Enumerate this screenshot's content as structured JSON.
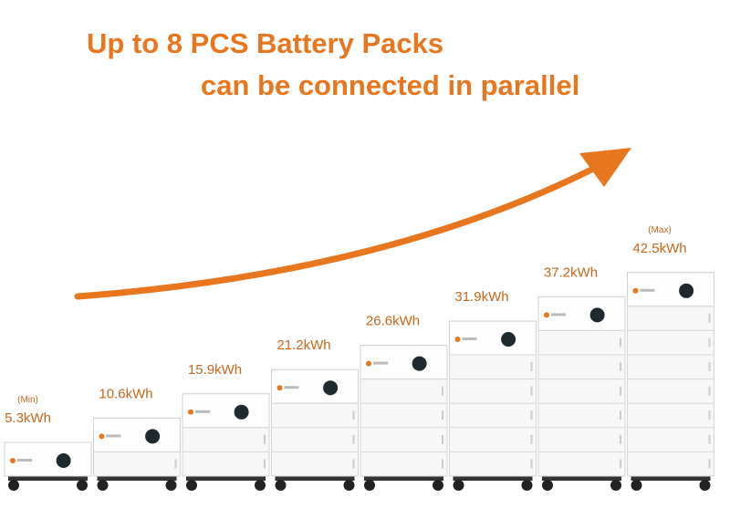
{
  "headline": [
    "Up to 8 PCS Battery Packs",
    "can be connected in parallel"
  ],
  "packs": [
    {
      "note": "(Min)",
      "capacity": "5.3kWh"
    },
    {
      "capacity": "10.6kWh"
    },
    {
      "capacity": "15.9kWh"
    },
    {
      "capacity": "21.2kWh"
    },
    {
      "capacity": "26.6kWh"
    },
    {
      "capacity": "31.9kWh"
    },
    {
      "capacity": "37.2kWh"
    },
    {
      "note": "(Max)",
      "capacity": "42.5kWh"
    }
  ]
}
